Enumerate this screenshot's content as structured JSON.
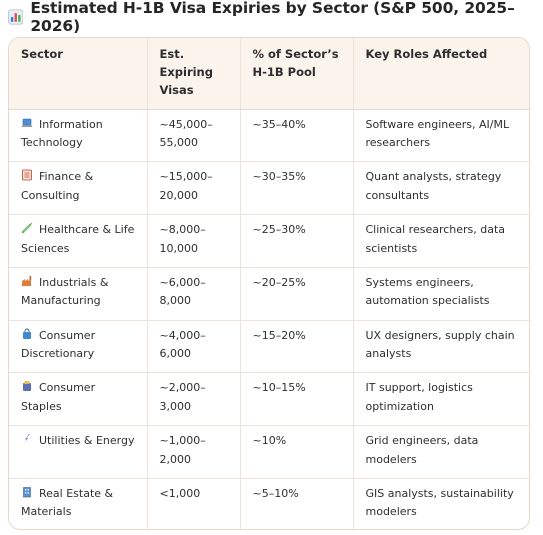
{
  "title": "Estimated H-1B Visa Expiries by Sector (S&P 500, 2025–2026)",
  "title_icon": "bar-chart-icon",
  "table": {
    "headers": [
      "Sector",
      "Est. Expiring Visas",
      "% of Sector’s H-1B Pool",
      "Key Roles Affected"
    ],
    "rows": [
      {
        "icon": "laptop-icon",
        "sector": "Information Technology",
        "visas": "~45,000–55,000",
        "pct": "~35–40%",
        "roles": "Software engineers, AI/ML researchers"
      },
      {
        "icon": "ledger-icon",
        "sector": "Finance & Consulting",
        "visas": "~15,000–20,000",
        "pct": "~30–35%",
        "roles": "Quant analysts, strategy consultants"
      },
      {
        "icon": "syringe-icon",
        "sector": "Healthcare & Life Sciences",
        "visas": "~8,000–10,000",
        "pct": "~25–30%",
        "roles": "Clinical researchers, data scientists"
      },
      {
        "icon": "factory-icon",
        "sector": "Industrials & Manufacturing",
        "visas": "~6,000–8,000",
        "pct": "~20–25%",
        "roles": "Systems engineers, automation specialists"
      },
      {
        "icon": "shopping-bag-icon",
        "sector": "Consumer Discretionary",
        "visas": "~4,000–6,000",
        "pct": "~15–20%",
        "roles": "UX designers, supply chain analysts"
      },
      {
        "icon": "grocery-icon",
        "sector": "Consumer Staples",
        "visas": "~2,000–3,000",
        "pct": "~10–15%",
        "roles": "IT support, logistics optimization"
      },
      {
        "icon": "lightning-icon",
        "sector": "Utilities & Energy",
        "visas": "~1,000–2,000",
        "pct": "~10%",
        "roles": "Grid engineers, data modelers"
      },
      {
        "icon": "building-icon",
        "sector": "Real Estate & Materials",
        "visas": "<1,000",
        "pct": "~5–10%",
        "roles": "GIS analysts, sustainability modelers"
      }
    ]
  },
  "colors": {
    "header_bg": "#fbf4ec",
    "border": "#e6d9cc"
  }
}
